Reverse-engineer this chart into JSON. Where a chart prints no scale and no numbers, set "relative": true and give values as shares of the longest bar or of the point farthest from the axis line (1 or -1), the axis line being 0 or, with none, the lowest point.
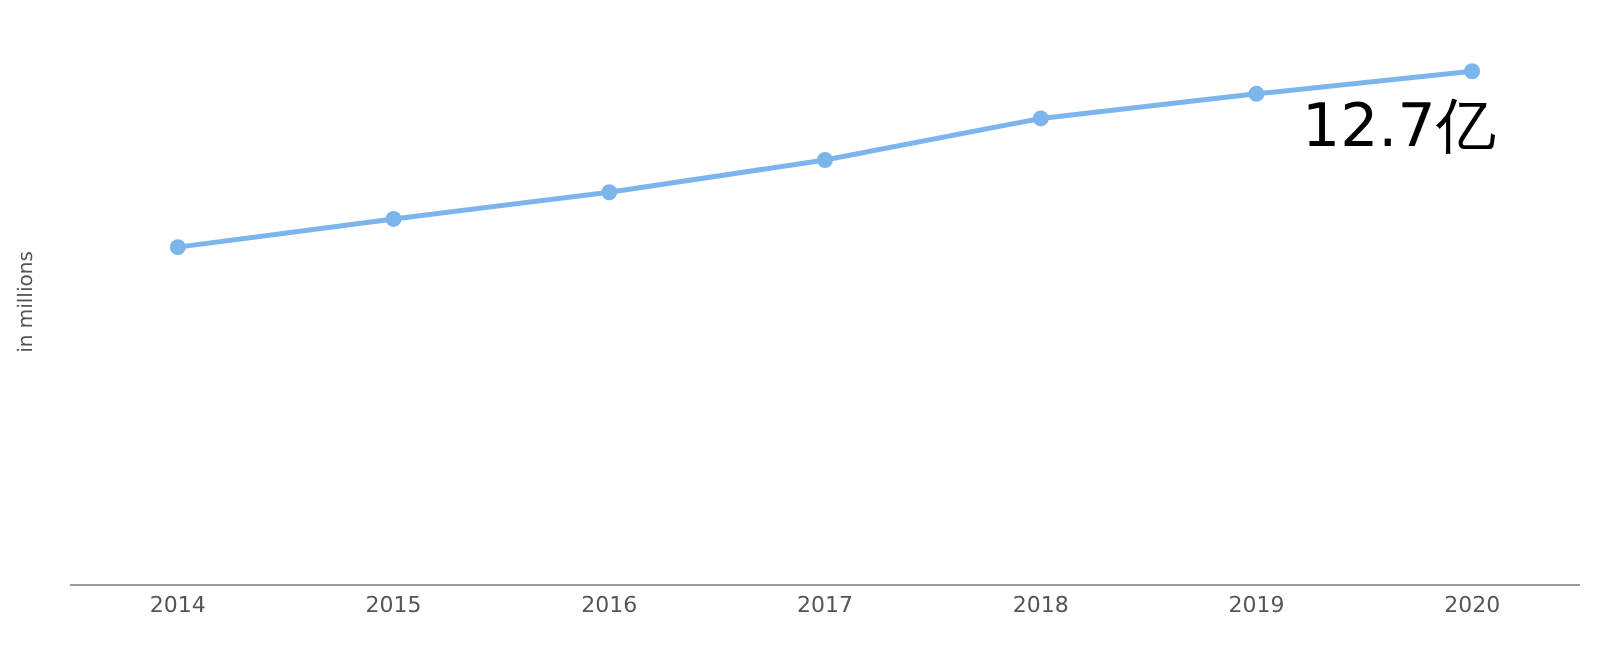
{
  "chart_data": {
    "type": "line",
    "relative": true,
    "ylabel": "in millions",
    "categories": [
      "2014",
      "2015",
      "2016",
      "2017",
      "2018",
      "2019",
      "2020"
    ],
    "series": [
      {
        "color": "#7cb5ec",
        "values": [
          0.657,
          0.712,
          0.764,
          0.827,
          0.908,
          0.956,
          1
        ]
      }
    ],
    "annotations": [
      {
        "text": "12.7亿",
        "x": "2020",
        "y": 1
      }
    ],
    "marker": "circle",
    "line_style": "solid"
  }
}
